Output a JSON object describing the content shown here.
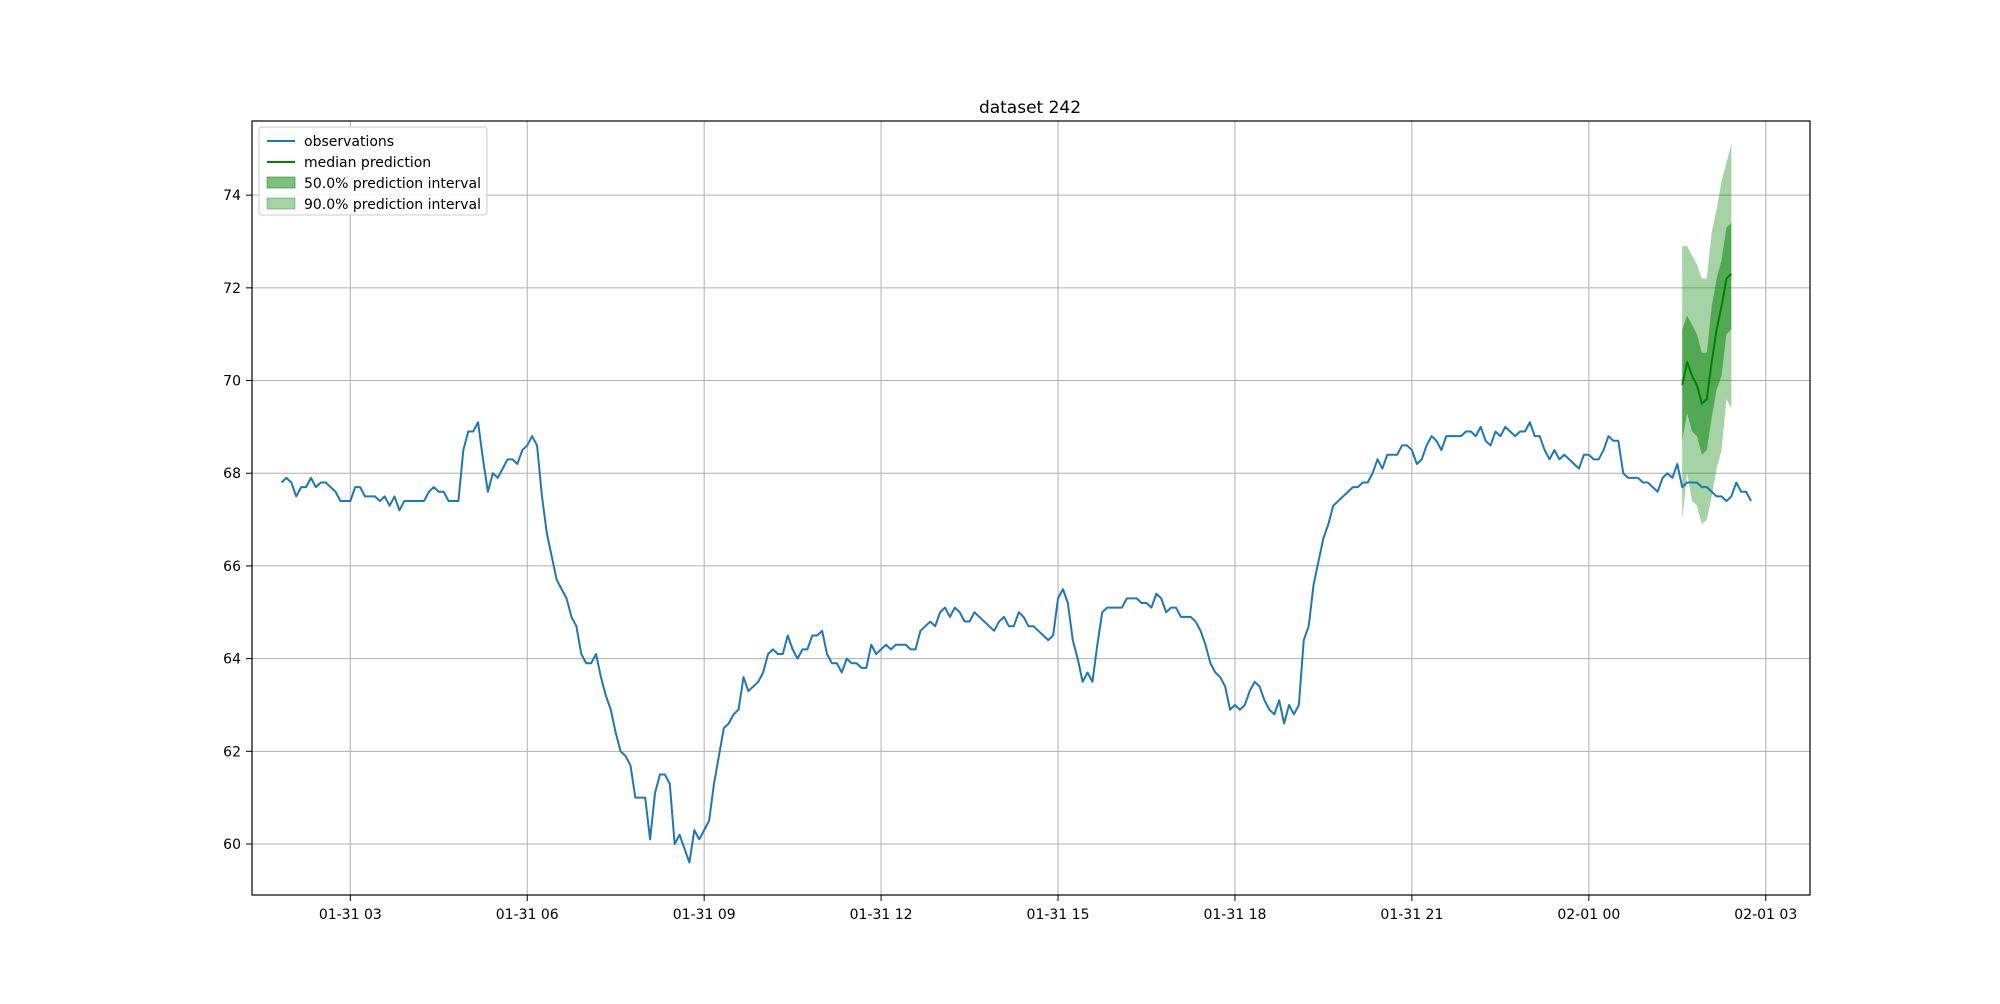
{
  "chart_data": {
    "type": "line",
    "title": "dataset 242",
    "xlabel": "",
    "ylabel": "",
    "grid": true,
    "legend_position": "top-left",
    "xlim": [
      "01-31 01:20",
      "02-01 03:45"
    ],
    "ylim": [
      58.9,
      75.6
    ],
    "x_ticks": [
      "01-31 03",
      "01-31 06",
      "01-31 09",
      "01-31 12",
      "01-31 15",
      "01-31 18",
      "01-31 21",
      "02-01 00",
      "02-01 03"
    ],
    "y_ticks": [
      "60",
      "62",
      "64",
      "66",
      "68",
      "70",
      "72",
      "74"
    ],
    "colors": {
      "observations": "#1f77b4",
      "median": "#008000",
      "interval": "#008000"
    },
    "legend": [
      {
        "label": "observations",
        "kind": "line",
        "color": "#1f77b4"
      },
      {
        "label": "median prediction",
        "kind": "line",
        "color": "#008000"
      },
      {
        "label": "50.0% prediction interval",
        "kind": "patch",
        "color": "#008000",
        "opacity": 0.5
      },
      {
        "label": "90.0% prediction interval",
        "kind": "patch",
        "color": "#008000",
        "opacity": 0.35
      }
    ],
    "observations": {
      "name": "observations",
      "x_start": "01-31 01:50",
      "x_step_minutes": 5,
      "y": [
        67.8,
        67.9,
        67.8,
        67.5,
        67.7,
        67.7,
        67.9,
        67.7,
        67.8,
        67.8,
        67.7,
        67.6,
        67.4,
        67.4,
        67.4,
        67.7,
        67.7,
        67.5,
        67.5,
        67.5,
        67.4,
        67.5,
        67.3,
        67.5,
        67.2,
        67.4,
        67.4,
        67.4,
        67.4,
        67.4,
        67.6,
        67.7,
        67.6,
        67.6,
        67.4,
        67.4,
        67.4,
        68.5,
        68.9,
        68.9,
        69.1,
        68.3,
        67.6,
        68.0,
        67.9,
        68.1,
        68.3,
        68.3,
        68.2,
        68.5,
        68.6,
        68.8,
        68.6,
        67.5,
        66.7,
        66.2,
        65.7,
        65.5,
        65.3,
        64.9,
        64.7,
        64.1,
        63.9,
        63.9,
        64.1,
        63.6,
        63.2,
        62.9,
        62.4,
        62.0,
        61.9,
        61.7,
        61.0,
        61.0,
        61.0,
        60.1,
        61.1,
        61.5,
        61.5,
        61.3,
        60.0,
        60.2,
        59.9,
        59.6,
        60.3,
        60.1,
        60.3,
        60.5,
        61.3,
        61.9,
        62.5,
        62.6,
        62.8,
        62.9,
        63.6,
        63.3,
        63.4,
        63.5,
        63.7,
        64.1,
        64.2,
        64.1,
        64.1,
        64.5,
        64.2,
        64.0,
        64.2,
        64.2,
        64.5,
        64.5,
        64.6,
        64.1,
        63.9,
        63.9,
        63.7,
        64.0,
        63.9,
        63.9,
        63.8,
        63.8,
        64.3,
        64.1,
        64.2,
        64.3,
        64.2,
        64.3,
        64.3,
        64.3,
        64.2,
        64.2,
        64.6,
        64.7,
        64.8,
        64.7,
        65.0,
        65.1,
        64.9,
        65.1,
        65.0,
        64.8,
        64.8,
        65.0,
        64.9,
        64.8,
        64.7,
        64.6,
        64.8,
        64.9,
        64.7,
        64.7,
        65.0,
        64.9,
        64.7,
        64.7,
        64.6,
        64.5,
        64.4,
        64.5,
        65.3,
        65.5,
        65.2,
        64.4,
        64.0,
        63.5,
        63.7,
        63.5,
        64.3,
        65.0,
        65.1,
        65.1,
        65.1,
        65.1,
        65.3,
        65.3,
        65.3,
        65.2,
        65.2,
        65.1,
        65.4,
        65.3,
        65.0,
        65.1,
        65.1,
        64.9,
        64.9,
        64.9,
        64.8,
        64.6,
        64.3,
        63.9,
        63.7,
        63.6,
        63.4,
        62.9,
        63.0,
        62.9,
        63.0,
        63.3,
        63.5,
        63.4,
        63.1,
        62.9,
        62.8,
        63.1,
        62.6,
        63.0,
        62.8,
        63.0,
        64.4,
        64.7,
        65.6,
        66.1,
        66.6,
        66.9,
        67.3,
        67.4,
        67.5,
        67.6,
        67.7,
        67.7,
        67.8,
        67.8,
        68.0,
        68.3,
        68.1,
        68.4,
        68.4,
        68.4,
        68.6,
        68.6,
        68.5,
        68.2,
        68.3,
        68.6,
        68.8,
        68.7,
        68.5,
        68.8,
        68.8,
        68.8,
        68.8,
        68.9,
        68.9,
        68.8,
        69.0,
        68.7,
        68.6,
        68.9,
        68.8,
        69.0,
        68.9,
        68.8,
        68.9,
        68.9,
        69.1,
        68.8,
        68.8,
        68.5,
        68.3,
        68.5,
        68.3,
        68.4,
        68.3,
        68.2,
        68.1,
        68.4,
        68.4,
        68.3,
        68.3,
        68.5,
        68.8,
        68.7,
        68.7,
        68.0,
        67.9,
        67.9,
        67.9,
        67.8,
        67.8,
        67.7,
        67.6,
        67.9,
        68.0,
        67.9,
        68.2,
        67.7,
        67.8,
        67.8,
        67.8,
        67.7,
        67.7,
        67.6,
        67.5,
        67.5,
        67.4,
        67.5,
        67.8,
        67.6,
        67.6,
        67.4
      ]
    },
    "forecast": {
      "x_start": "02-01 01:35",
      "x_step_minutes": 5,
      "median": [
        69.9,
        70.4,
        70.1,
        69.9,
        69.5,
        69.6,
        70.4,
        71.1,
        71.6,
        72.2,
        72.3
      ],
      "p50_low": [
        68.7,
        69.3,
        68.9,
        68.8,
        68.4,
        68.5,
        69.2,
        69.8,
        70.1,
        71.0,
        71.1
      ],
      "p50_high": [
        71.1,
        71.4,
        71.2,
        71.0,
        70.6,
        70.6,
        71.6,
        72.2,
        72.6,
        73.3,
        73.4
      ],
      "p90_low": [
        67.0,
        68.0,
        67.4,
        67.3,
        66.9,
        67.0,
        67.5,
        68.1,
        68.5,
        69.6,
        69.4
      ],
      "p90_high": [
        72.9,
        72.9,
        72.7,
        72.5,
        72.2,
        72.2,
        73.2,
        73.7,
        74.3,
        74.7,
        75.1
      ]
    }
  }
}
